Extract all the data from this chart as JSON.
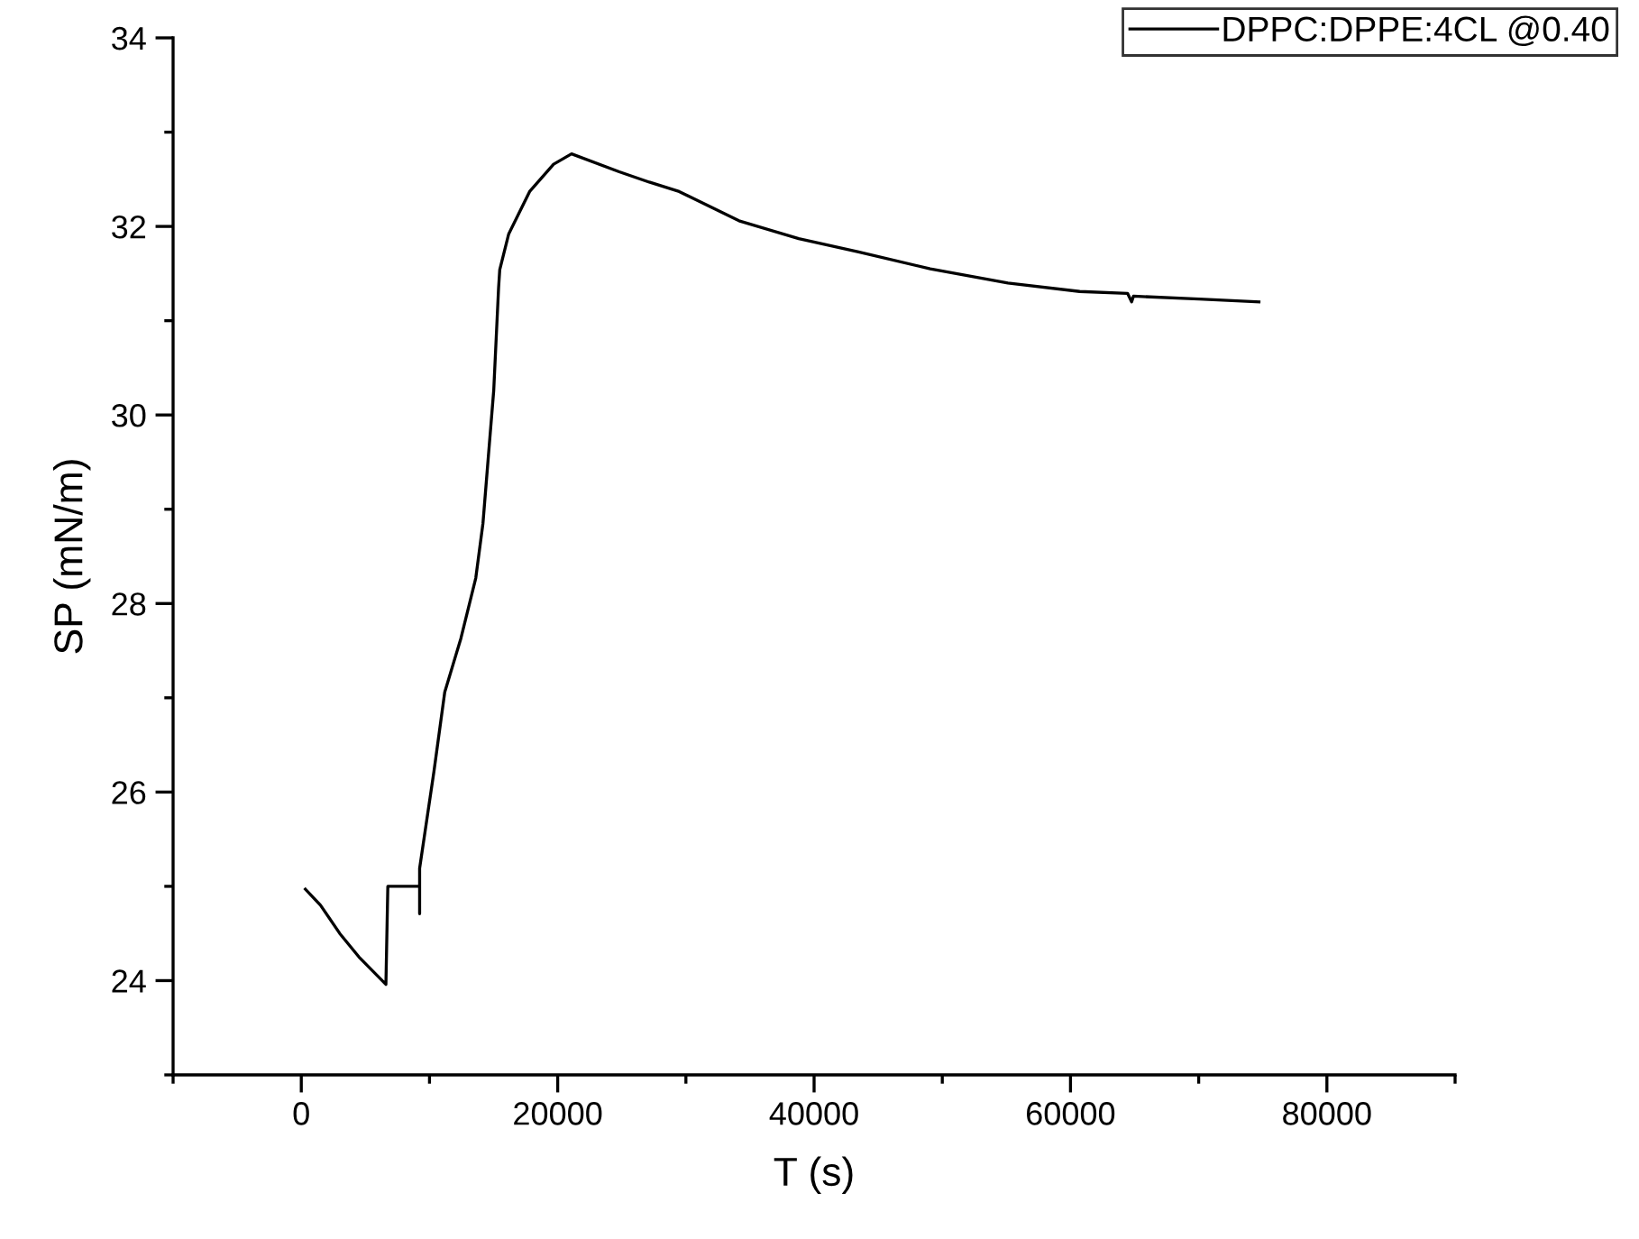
{
  "chart_data": {
    "type": "line",
    "xlabel": "T (s)",
    "ylabel": "SP (mN/m)",
    "xlim": [
      -10000,
      90000
    ],
    "ylim": [
      23,
      34
    ],
    "xticks": [
      {
        "value": -10000,
        "label": null
      },
      0,
      {
        "value": 10000,
        "label": null
      },
      20000,
      {
        "value": 30000,
        "label": null
      },
      40000,
      {
        "value": 50000,
        "label": null
      },
      60000,
      {
        "value": 70000,
        "label": null
      },
      80000,
      {
        "value": 90000,
        "label": null
      }
    ],
    "yticks": [
      {
        "value": 23,
        "label": null
      },
      24,
      {
        "value": 25,
        "label": null
      },
      26,
      {
        "value": 27,
        "label": null
      },
      28,
      {
        "value": 29,
        "label": null
      },
      30,
      {
        "value": 31,
        "label": null
      },
      32,
      {
        "value": 33,
        "label": null
      },
      34
    ],
    "grid": false,
    "legend": "top right",
    "marker": "none",
    "line_style": "solid",
    "series": [
      {
        "name": "DPPC:DPPE:4CL @0.40",
        "color": "#000000",
        "x": [
          320,
          1500,
          3000,
          4500,
          6600,
          6750,
          9230,
          9230,
          9230,
          10350,
          11190,
          12450,
          13610,
          14170,
          14550,
          15010,
          15390,
          15480,
          16180,
          17810,
          19680,
          21080,
          24800,
          27140,
          29480,
          34140,
          38800,
          43470,
          49060,
          55120,
          60720,
          64450,
          64770,
          64910,
          70040,
          74700
        ],
        "values": [
          24.97,
          24.8,
          24.5,
          24.25,
          23.96,
          25.0,
          25.0,
          24.71,
          25.19,
          26.22,
          27.06,
          27.63,
          28.27,
          28.85,
          29.49,
          30.26,
          31.35,
          31.54,
          31.92,
          32.37,
          32.66,
          32.77,
          32.58,
          32.47,
          32.37,
          32.06,
          31.87,
          31.73,
          31.55,
          31.4,
          31.31,
          31.29,
          31.2,
          31.26,
          31.23,
          31.2
        ]
      }
    ]
  }
}
